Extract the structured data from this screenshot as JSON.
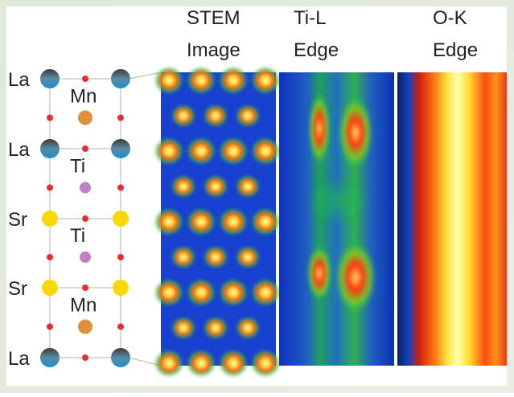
{
  "structure": {
    "a_site_labels": [
      "La",
      "La",
      "Sr",
      "Sr",
      "La"
    ],
    "b_site_labels": [
      "Mn",
      "Ti",
      "Ti",
      "Mn"
    ]
  },
  "panels": [
    {
      "title": [
        "STEM",
        "Image"
      ]
    },
    {
      "title": [
        "Ti-L",
        "Edge"
      ]
    },
    {
      "title": [
        "O-K",
        "Edge"
      ]
    }
  ]
}
